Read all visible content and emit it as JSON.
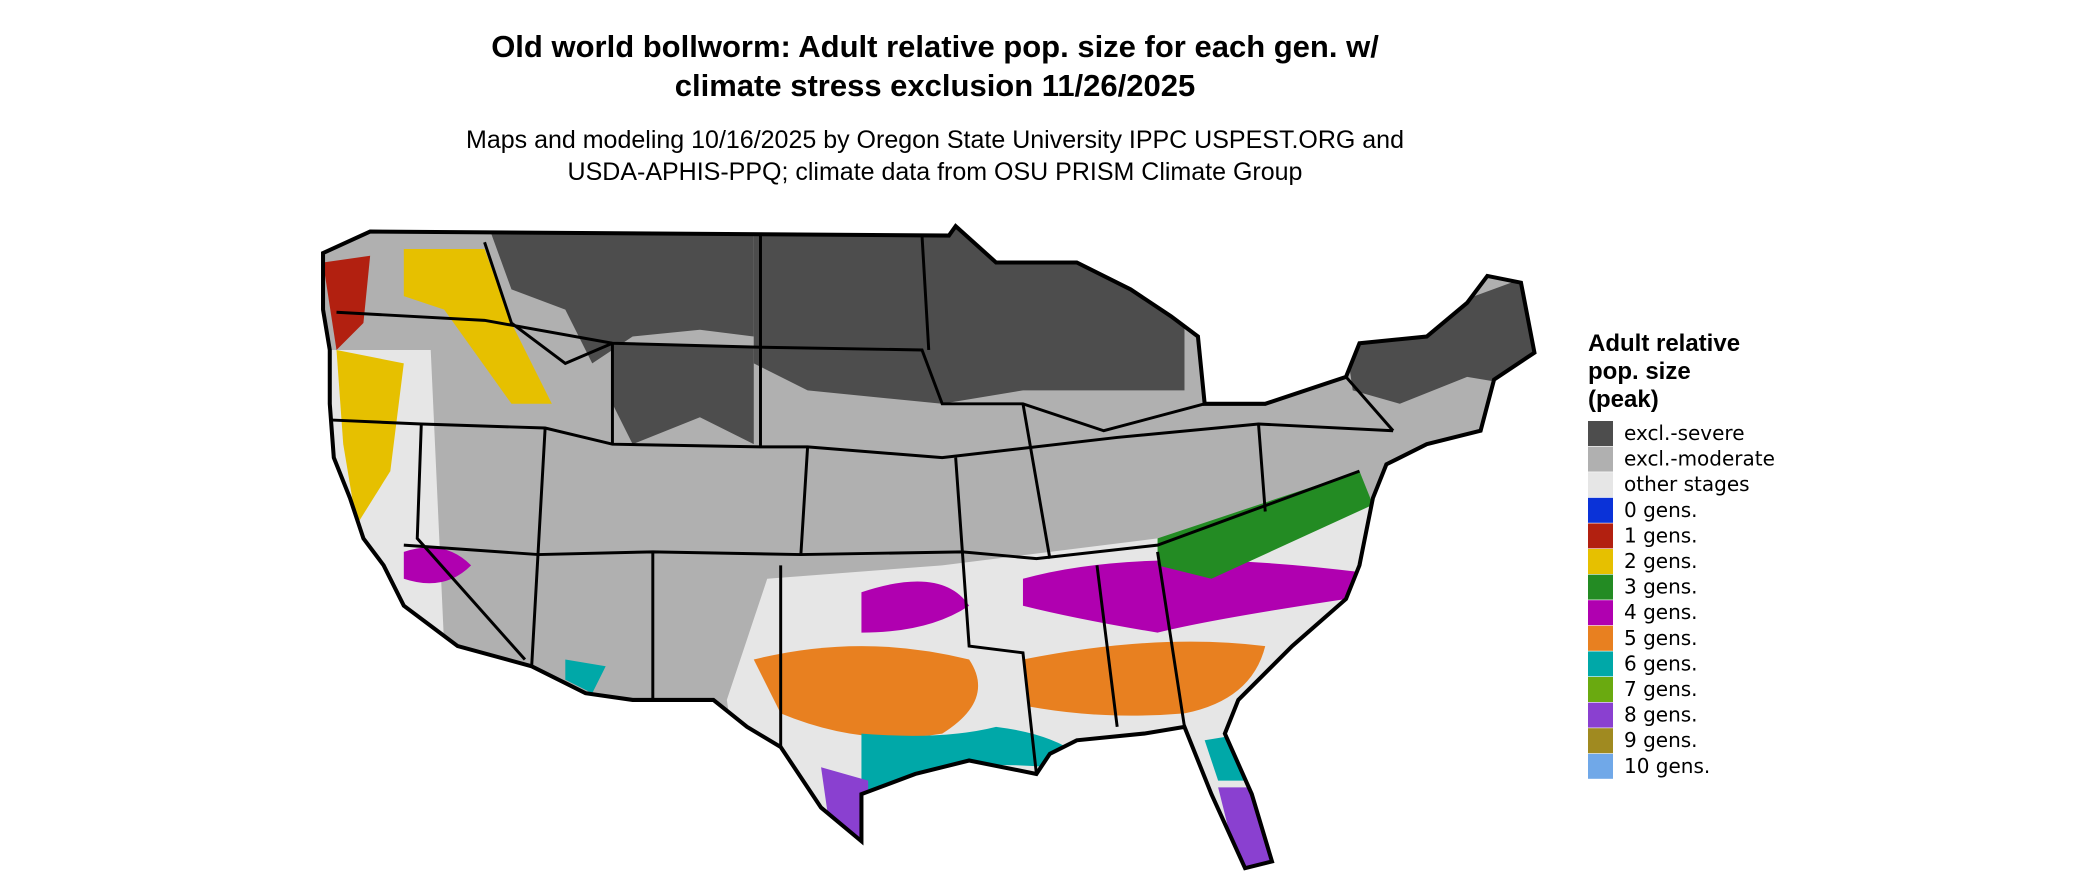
{
  "title": [
    "Old world bollworm: Adult relative pop. size for each gen. w/",
    "climate stress exclusion 11/26/2025"
  ],
  "subtitle": [
    "Maps and modeling 10/16/2025 by Oregon State University IPPC USPEST.ORG and",
    "USDA-APHIS-PPQ; climate data from OSU PRISM Climate Group"
  ],
  "legend": {
    "title": [
      "Adult relative",
      "pop. size",
      "(peak)"
    ],
    "items": [
      {
        "name": "excl.-severe",
        "color": "#4d4d4d"
      },
      {
        "name": "excl.-moderate",
        "color": "#b0b0b0"
      },
      {
        "name": "other stages",
        "color": "#e6e6e6"
      },
      {
        "name": "0 gens.",
        "color": "#0a32d8"
      },
      {
        "name": "1 gens.",
        "color": "#b22010"
      },
      {
        "name": "2 gens.",
        "color": "#e6c000"
      },
      {
        "name": "3 gens.",
        "color": "#238b23"
      },
      {
        "name": "4 gens.",
        "color": "#b000b0"
      },
      {
        "name": "5 gens.",
        "color": "#e88020"
      },
      {
        "name": "6 gens.",
        "color": "#00a8a8"
      },
      {
        "name": "7 gens.",
        "color": "#6aaa10"
      },
      {
        "name": "8 gens.",
        "color": "#8a40d0"
      },
      {
        "name": "9 gens.",
        "color": "#a08a20"
      },
      {
        "name": "10 gens.",
        "color": "#70a8e8"
      }
    ]
  }
}
